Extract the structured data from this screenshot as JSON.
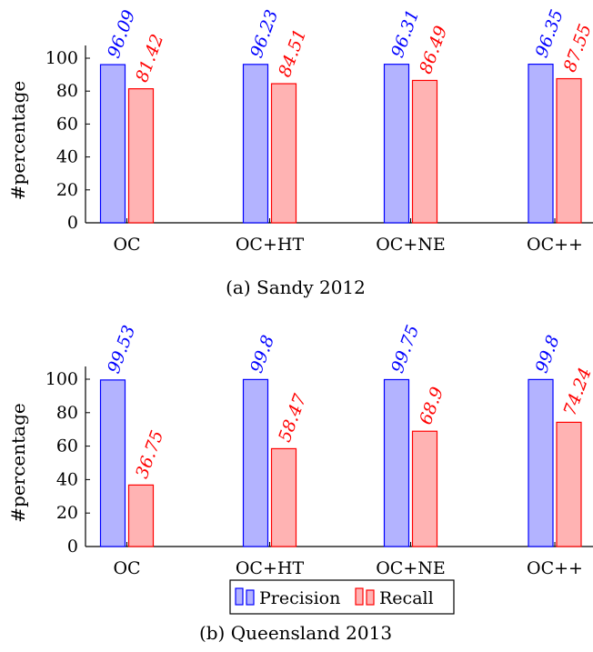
{
  "colors": {
    "precision_fill": "#b3b3ff",
    "precision_stroke": "#0000ff",
    "recall_fill": "#ffb3b3",
    "recall_stroke": "#ff0000",
    "precision_label": "#0000ff",
    "recall_label": "#ff0000"
  },
  "legend": {
    "precision_label": "Precision",
    "recall_label": "Recall",
    "placement": "below-bottom-chart"
  },
  "chart_data": [
    {
      "type": "bar",
      "caption": "(a) Sandy 2012",
      "ylabel": "#percentage",
      "ylim": [
        0,
        100
      ],
      "yticks": [
        "0",
        "20",
        "40",
        "60",
        "80",
        "100"
      ],
      "categories": [
        "OC",
        "OC+HT",
        "OC+NE",
        "OC++"
      ],
      "series": [
        {
          "name": "Precision",
          "values": [
            96.09,
            96.23,
            96.31,
            96.35
          ],
          "labels": [
            "96.09",
            "96.23",
            "96.31",
            "96.35"
          ]
        },
        {
          "name": "Recall",
          "values": [
            81.42,
            84.51,
            86.49,
            87.55
          ],
          "labels": [
            "81.42",
            "84.51",
            "86.49",
            "87.55"
          ]
        }
      ]
    },
    {
      "type": "bar",
      "caption": "(b) Queensland 2013",
      "ylabel": "#percentage",
      "ylim": [
        0,
        100
      ],
      "yticks": [
        "0",
        "20",
        "40",
        "60",
        "80",
        "100"
      ],
      "categories": [
        "OC",
        "OC+HT",
        "OC+NE",
        "OC++"
      ],
      "series": [
        {
          "name": "Precision",
          "values": [
            99.53,
            99.8,
            99.75,
            99.8
          ],
          "labels": [
            "99.53",
            "99.8",
            "99.75",
            "99.8"
          ]
        },
        {
          "name": "Recall",
          "values": [
            36.75,
            58.47,
            68.9,
            74.24
          ],
          "labels": [
            "36.75",
            "58.47",
            "68.9",
            "74.24"
          ]
        }
      ]
    }
  ]
}
